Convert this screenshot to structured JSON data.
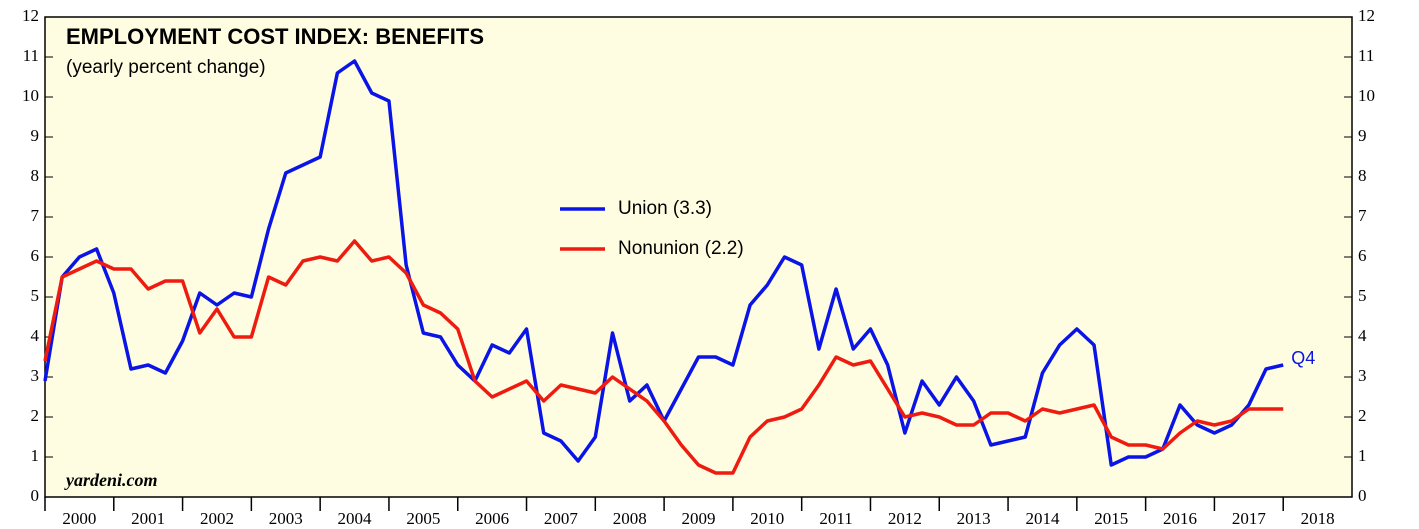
{
  "chart_data": {
    "type": "line",
    "title": "EMPLOYMENT COST INDEX: BENEFITS",
    "subtitle": "(yearly percent change)",
    "source": "yardeni.com",
    "annotation": "Q4",
    "x": [
      2000,
      2000.25,
      2000.5,
      2000.75,
      2001,
      2001.25,
      2001.5,
      2001.75,
      2002,
      2002.25,
      2002.5,
      2002.75,
      2003,
      2003.25,
      2003.5,
      2003.75,
      2004,
      2004.25,
      2004.5,
      2004.75,
      2005,
      2005.25,
      2005.5,
      2005.75,
      2006,
      2006.25,
      2006.5,
      2006.75,
      2007,
      2007.25,
      2007.5,
      2007.75,
      2008,
      2008.25,
      2008.5,
      2008.75,
      2009,
      2009.25,
      2009.5,
      2009.75,
      2010,
      2010.25,
      2010.5,
      2010.75,
      2011,
      2011.25,
      2011.5,
      2011.75,
      2012,
      2012.25,
      2012.5,
      2012.75,
      2013,
      2013.25,
      2013.5,
      2013.75,
      2014,
      2014.25,
      2014.5,
      2014.75,
      2015,
      2015.25,
      2015.5,
      2015.75,
      2016,
      2016.25,
      2016.5,
      2016.75,
      2017,
      2017.25,
      2017.5,
      2017.75,
      2018
    ],
    "series": [
      {
        "name": "Union (3.3)",
        "color": "#0a14e6",
        "values": [
          2.9,
          5.5,
          6.0,
          6.2,
          5.1,
          3.2,
          3.3,
          3.1,
          3.9,
          5.1,
          4.8,
          5.1,
          5.0,
          6.7,
          8.1,
          8.3,
          8.5,
          10.6,
          10.9,
          10.1,
          9.9,
          5.8,
          4.1,
          4.0,
          3.3,
          2.9,
          3.8,
          3.6,
          4.2,
          1.6,
          1.4,
          0.9,
          1.5,
          4.1,
          2.4,
          2.8,
          1.9,
          2.7,
          3.5,
          3.5,
          3.3,
          4.8,
          5.3,
          6.0,
          5.8,
          3.7,
          5.2,
          3.7,
          4.2,
          3.3,
          1.6,
          2.9,
          2.3,
          3.0,
          2.4,
          1.3,
          1.4,
          1.5,
          3.1,
          3.8,
          4.2,
          3.8,
          0.8,
          1.0,
          1.0,
          1.2,
          2.3,
          1.8,
          1.6,
          1.8,
          2.3,
          3.2,
          3.3
        ]
      },
      {
        "name": "Nonunion (2.2)",
        "color": "#ee1c10",
        "values": [
          3.4,
          5.5,
          5.7,
          5.9,
          5.7,
          5.7,
          5.2,
          5.4,
          5.4,
          4.1,
          4.7,
          4.0,
          4.0,
          5.5,
          5.3,
          5.9,
          6.0,
          5.9,
          6.4,
          5.9,
          6.0,
          5.6,
          4.8,
          4.6,
          4.2,
          2.9,
          2.5,
          2.7,
          2.9,
          2.4,
          2.8,
          2.7,
          2.6,
          3.0,
          2.7,
          2.4,
          1.9,
          1.3,
          0.8,
          0.6,
          0.6,
          1.5,
          1.9,
          2.0,
          2.2,
          2.8,
          3.5,
          3.3,
          3.4,
          2.7,
          2.0,
          2.1,
          2.0,
          1.8,
          1.8,
          2.1,
          2.1,
          1.9,
          2.2,
          2.1,
          2.2,
          2.3,
          1.5,
          1.3,
          1.3,
          1.2,
          1.6,
          1.9,
          1.8,
          1.9,
          2.2,
          2.2,
          2.2
        ]
      }
    ],
    "xlim": [
      2000,
      2019
    ],
    "xticks": [
      2000,
      2001,
      2002,
      2003,
      2004,
      2005,
      2006,
      2007,
      2008,
      2009,
      2010,
      2011,
      2012,
      2013,
      2014,
      2015,
      2016,
      2017,
      2018
    ],
    "ylim": [
      0,
      12
    ],
    "yticks": [
      0,
      1,
      2,
      3,
      4,
      5,
      6,
      7,
      8,
      9,
      10,
      11,
      12
    ],
    "background": "#fffde1"
  }
}
